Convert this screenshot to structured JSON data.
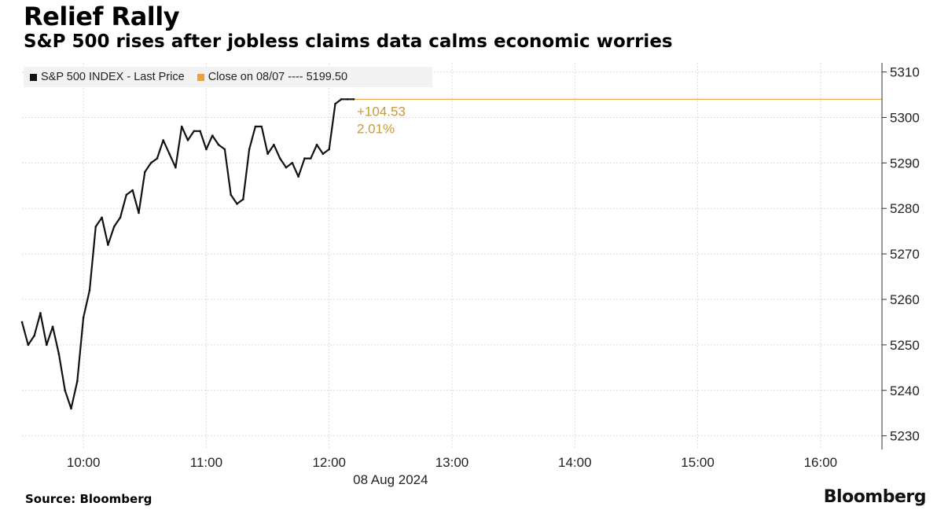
{
  "header": {
    "title": "Relief Rally",
    "subtitle": "S&P 500 rises after jobless claims data calms economic worries"
  },
  "legend": {
    "series_label": "S&P 500 INDEX - Last Price",
    "close_label": "Close on 08/07 ---- 5199.50"
  },
  "footer": {
    "source": "Source: Bloomberg",
    "brand": "Bloomberg"
  },
  "colors": {
    "price_line": "#111111",
    "close_line": "#e8a33d",
    "annotation": "#c79a3a",
    "grid": "#dcdcdc"
  },
  "chart_data": {
    "type": "line",
    "x_tick_labels": [
      "10:00",
      "11:00",
      "12:00",
      "13:00",
      "14:00",
      "15:00",
      "16:00"
    ],
    "x_sublabel": "08 Aug 2024",
    "x_range": [
      "09:30",
      "16:30"
    ],
    "y_ticks": [
      5230,
      5240,
      5250,
      5260,
      5270,
      5280,
      5290,
      5300,
      5310
    ],
    "ylim": [
      5227,
      5312
    ],
    "y_axis_side": "right",
    "grid": true,
    "series": [
      {
        "name": "S&P 500 INDEX - Last Price",
        "x": [
          "09:30",
          "09:33",
          "09:36",
          "09:39",
          "09:42",
          "09:45",
          "09:48",
          "09:51",
          "09:54",
          "09:57",
          "10:00",
          "10:03",
          "10:06",
          "10:09",
          "10:12",
          "10:15",
          "10:18",
          "10:21",
          "10:24",
          "10:27",
          "10:30",
          "10:33",
          "10:36",
          "10:39",
          "10:42",
          "10:45",
          "10:48",
          "10:51",
          "10:54",
          "10:57",
          "11:00",
          "11:03",
          "11:06",
          "11:09",
          "11:12",
          "11:15",
          "11:18",
          "11:21",
          "11:24",
          "11:27",
          "11:30",
          "11:33",
          "11:36",
          "11:39",
          "11:42",
          "11:45",
          "11:48",
          "11:51",
          "11:54",
          "11:57",
          "12:00",
          "12:03",
          "12:06",
          "12:09",
          "12:12"
        ],
        "values": [
          5255,
          5250,
          5252,
          5257,
          5250,
          5254,
          5248,
          5240,
          5236,
          5242,
          5256,
          5262,
          5276,
          5278,
          5272,
          5276,
          5278,
          5283,
          5284,
          5279,
          5288,
          5290,
          5291,
          5295,
          5292,
          5289,
          5298,
          5295,
          5297,
          5297,
          5293,
          5296,
          5294,
          5293,
          5283,
          5281,
          5282,
          5293,
          5298,
          5298,
          5292,
          5294,
          5291,
          5289,
          5290,
          5287,
          5291,
          5291,
          5294,
          5292,
          5293,
          5303,
          5304,
          5304,
          5304
        ]
      }
    ],
    "reference_line": {
      "label": "Close on 08/07",
      "value": 5199.5
    },
    "annotations": [
      "+104.53",
      "2.01%"
    ]
  }
}
